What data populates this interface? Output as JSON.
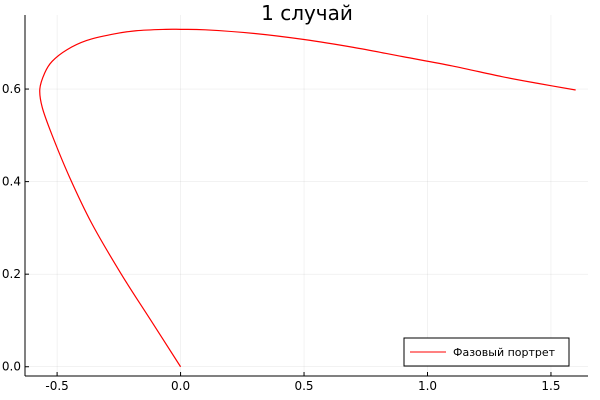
{
  "chart_data": {
    "type": "line",
    "title": "1 случай",
    "xlabel": "",
    "ylabel": "",
    "xlim": [
      -0.63,
      1.65
    ],
    "ylim": [
      -0.02,
      0.76
    ],
    "x_ticks": [
      -0.5,
      0.0,
      0.5,
      1.0,
      1.5
    ],
    "x_tick_labels": [
      "-0.5",
      "0.0",
      "0.5",
      "1.0",
      "1.5"
    ],
    "y_ticks": [
      0.0,
      0.2,
      0.4,
      0.6
    ],
    "y_tick_labels": [
      "0.0",
      "0.2",
      "0.4",
      "0.6"
    ],
    "grid": true,
    "legend_position": "bottom-right",
    "series": [
      {
        "name": "Фазовый портрет",
        "color": "#ff0000",
        "x": [
          0.0,
          -0.12,
          -0.24,
          -0.36,
          -0.45,
          -0.52,
          -0.56,
          -0.57,
          -0.55,
          -0.52,
          -0.46,
          -0.38,
          -0.28,
          -0.18,
          -0.06,
          0.0,
          0.1,
          0.3,
          0.5,
          0.7,
          0.9,
          1.1,
          1.3,
          1.45,
          1.6
        ],
        "y": [
          0.0,
          0.1,
          0.2,
          0.31,
          0.41,
          0.5,
          0.56,
          0.6,
          0.635,
          0.66,
          0.685,
          0.705,
          0.718,
          0.726,
          0.729,
          0.729,
          0.728,
          0.72,
          0.707,
          0.69,
          0.67,
          0.65,
          0.627,
          0.612,
          0.598
        ]
      }
    ]
  }
}
